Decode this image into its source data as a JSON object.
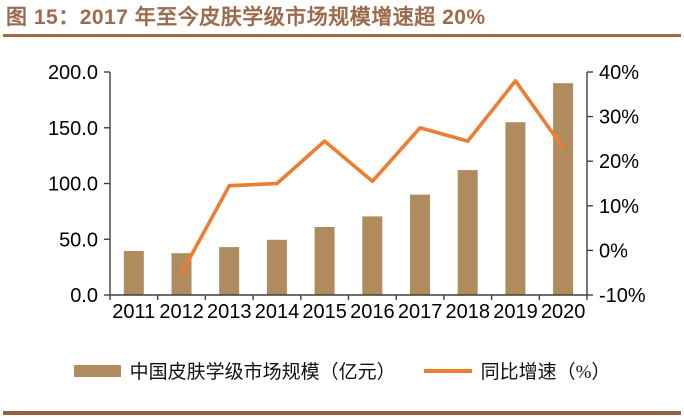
{
  "title": "图 15：2017 年至今皮肤学级市场规模增速超 20%",
  "colors": {
    "bar": "#B08B5E",
    "line": "#ED7D31",
    "title_text": "#9C6B4E",
    "rule_top": "#A26B38",
    "rule_bottom": "#8F6140",
    "axis": "#3F3F3F"
  },
  "chart_data": {
    "type": "bar",
    "combo": "bar+line dual-axis",
    "title": "图 15：2017 年至今皮肤学级市场规模增速超 20%",
    "categories": [
      "2011",
      "2012",
      "2013",
      "2014",
      "2015",
      "2016",
      "2017",
      "2018",
      "2019",
      "2020"
    ],
    "series": [
      {
        "name": "中国皮肤学级市场规模（亿元）",
        "type": "bar",
        "axis": "left",
        "values": [
          39.5,
          37.5,
          43.0,
          49.5,
          61.0,
          70.5,
          90.0,
          112.0,
          155.0,
          190.0
        ]
      },
      {
        "name": "同比增速（%）",
        "type": "line",
        "axis": "right",
        "values": [
          null,
          -5.1,
          14.5,
          15.0,
          24.5,
          15.5,
          27.5,
          24.5,
          38.0,
          23.0
        ]
      }
    ],
    "left_axis": {
      "min": 0,
      "max": 200,
      "step": 50,
      "tick_labels": [
        "0.0",
        "50.0",
        "100.0",
        "150.0",
        "200.0"
      ]
    },
    "right_axis": {
      "min": -10,
      "max": 40,
      "step": 10,
      "tick_labels": [
        "-10%",
        "0%",
        "10%",
        "20%",
        "30%",
        "40%"
      ]
    },
    "grid": false,
    "legend_position": "bottom"
  }
}
